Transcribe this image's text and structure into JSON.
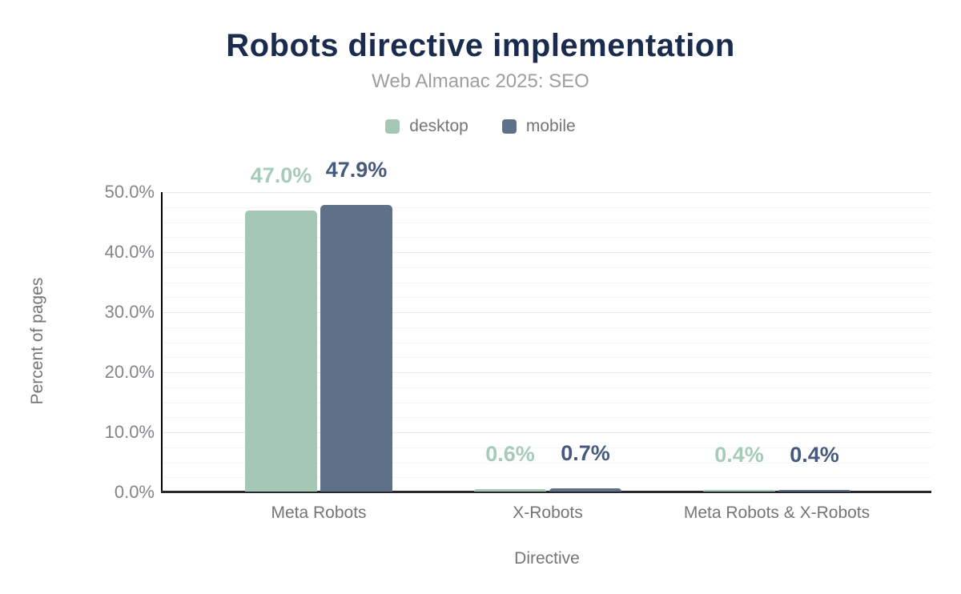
{
  "header": {
    "title": "Robots directive implementation",
    "subtitle": "Web Almanac 2025: SEO"
  },
  "legend": {
    "items": [
      {
        "label": "desktop",
        "color": "#a4c8b5"
      },
      {
        "label": "mobile",
        "color": "#5f7189"
      }
    ]
  },
  "chart_data": {
    "type": "bar",
    "title": "Robots directive implementation",
    "subtitle": "Web Almanac 2025: SEO",
    "categories": [
      "Meta Robots",
      "X-Robots",
      "Meta Robots & X-Robots"
    ],
    "series": [
      {
        "name": "desktop",
        "values": [
          47.0,
          0.6,
          0.4
        ],
        "labels": [
          "47.0%",
          "0.6%",
          "0.4%"
        ],
        "color": "#a4c8b5",
        "label_color": "#a7cbb8"
      },
      {
        "name": "mobile",
        "values": [
          47.9,
          0.7,
          0.4
        ],
        "labels": [
          "47.9%",
          "0.7%",
          "0.4%"
        ],
        "color": "#5f7189",
        "label_color": "#485a7c"
      }
    ],
    "xlabel": "Directive",
    "ylabel": "Percent of pages",
    "ylim": [
      0,
      50
    ],
    "yticks": [
      0,
      10,
      20,
      30,
      40,
      50
    ],
    "ytick_labels": [
      "0.0%",
      "10.0%",
      "20.0%",
      "30.0%",
      "40.0%",
      "50.0%"
    ],
    "grid": {
      "major_step": 10,
      "minor_step": 2.5,
      "horizontal": true
    },
    "legend_position": "top",
    "colors": {
      "title": "#1a2b4e",
      "subtitle": "#9e9e9e",
      "axis_text": "#757575",
      "tick_text": "#828689",
      "x_axis_line": "#27272d",
      "y_axis_line": "#000000"
    }
  }
}
